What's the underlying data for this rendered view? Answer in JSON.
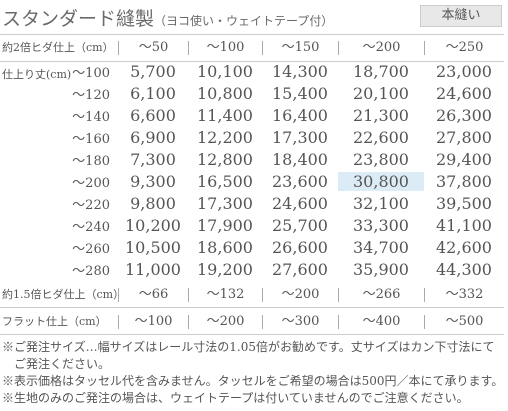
{
  "header": {
    "title": "スタンダード縫製",
    "subtitle": "（ヨコ使い・ウェイトテープ付）",
    "badge": "本縫い"
  },
  "table": {
    "column_header_label": "約2倍ヒダ仕上（cm）",
    "columns": [
      "～50",
      "～100",
      "～150",
      "～200",
      "～250"
    ],
    "row_header_label": "仕上り丈(cm)",
    "rows": [
      {
        "label": "～100",
        "cells": [
          "5,700",
          "10,100",
          "14,300",
          "18,700",
          "23,000"
        ]
      },
      {
        "label": "～120",
        "cells": [
          "6,100",
          "10,800",
          "15,400",
          "20,100",
          "24,600"
        ]
      },
      {
        "label": "～140",
        "cells": [
          "6,600",
          "11,400",
          "16,400",
          "21,300",
          "26,300"
        ]
      },
      {
        "label": "～160",
        "cells": [
          "6,900",
          "12,200",
          "17,300",
          "22,600",
          "27,800"
        ]
      },
      {
        "label": "～180",
        "cells": [
          "7,300",
          "12,800",
          "18,400",
          "23,800",
          "29,400"
        ]
      },
      {
        "label": "～200",
        "cells": [
          "9,300",
          "16,500",
          "23,600",
          "30,800",
          "37,800"
        ]
      },
      {
        "label": "～220",
        "cells": [
          "9,800",
          "17,300",
          "24,600",
          "32,100",
          "39,500"
        ]
      },
      {
        "label": "～240",
        "cells": [
          "10,200",
          "17,900",
          "25,700",
          "33,300",
          "41,100"
        ]
      },
      {
        "label": "～260",
        "cells": [
          "10,500",
          "18,600",
          "26,600",
          "34,700",
          "42,600"
        ]
      },
      {
        "label": "～280",
        "cells": [
          "11,000",
          "19,200",
          "27,600",
          "35,900",
          "44,300"
        ]
      }
    ]
  },
  "extra_rows": [
    {
      "label": "約1.5倍ヒダ仕上（cm）",
      "cells": [
        "～66",
        "～132",
        "～200",
        "～266",
        "～332"
      ]
    },
    {
      "label": "フラット仕上（cm）",
      "cells": [
        "～100",
        "～200",
        "～300",
        "～400",
        "～500"
      ]
    }
  ],
  "notes": [
    "※ご発注サイズ…幅サイズはレール寸法の1.05倍がお勧めです。丈サイズはカン下寸法にてご発注ください。",
    "※表示価格はタッセル代を含みません。タッセルをご希望の場合は500円／本にて承ります。",
    "※生地のみのご発注の場合は、ウェイトテープは付いていませんのでご注意ください。"
  ]
}
